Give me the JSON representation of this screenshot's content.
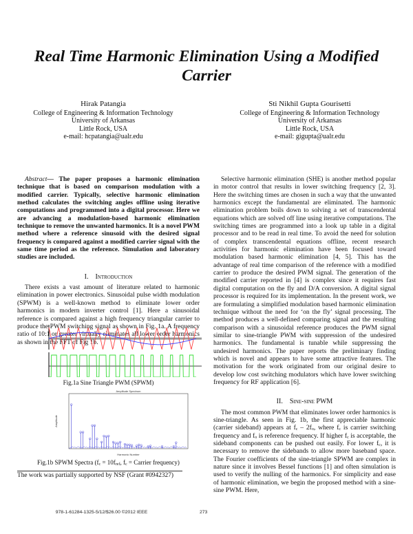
{
  "title": "Real Time Harmonic Elimination Using a Modified Carrier",
  "authors": [
    {
      "name": "Hirak Patangia",
      "dept": "College of Engineering & Information Technology",
      "univ": "University of Arkansas",
      "city": "Little Rock, USA",
      "email": "e-mail: hcpatangia@ualr.edu"
    },
    {
      "name": "Sti Nikhil Gupta Gourisetti",
      "dept": "College of Engineering & Information Technology",
      "univ": "University of Arkansas",
      "city": "Little Rock, USA",
      "email": "e-mail: gigupta@ualr.edu"
    }
  ],
  "abstract": {
    "label": "Abstract",
    "text": "— The paper proposes a harmonic elimination technique that is based on comparison modulation with a modified carrier. Typically, selective harmonic elimination method calculates the switching angles offline using iterative computations and programmed into a digital processor. Here we are advancing a modulation-based harmonic elimination technique to remove the unwanted harmonics. It is a novel PWM method where a reference sinusoid with the desired signal frequency is compared against a modified carrier signal with the same time period as the reference. Simulation and laboratory studies are included."
  },
  "section1": {
    "number": "I.",
    "title": "Introduction",
    "para1": "There exists a vast amount of literature related to harmonic elimination in power electronics. Sinusoidal pulse width modulation (SPWM) is a well-known method to eliminate lower order harmonics in modern inverter control [1]. Here a sinusoidal reference is compared against a high frequency triangular carrier to produce the PWM switching signal as shown in Fig. 1a. A frequency ratio of 10:1 or greater virtually eliminates all lower order harmonics as shown in the FFT of Fig 1b.",
    "para2": "Selective harmonic elimination (SHE) is another method popular in motor control that results in lower switching frequency [2, 3]. Here the switching times are chosen in such a way that the unwanted harmonics except the fundamental are eliminated. The harmonic elimination problem boils down to solving a set of transcendental equations which are solved off line using iterative computations. The switching times are programmed into a look up table in a digital processor and to be read in real time. To avoid the need for solution of complex transcendental equations offline, recent research activities for harmonic elimination have been focused toward modulation based harmonic elimination [4, 5]. This has the advantage of real time comparison of the reference with a modified carrier to produce the desired PWM signal. The generation of the modified carrier reported in [4] is complex since it requires fast digital computation on the fly and D/A conversion. A digital signal processor is required for its implementation. In the present work, we are formulating a simplified modulation based harmonic elimination technique without the need for ‘on the fly’ signal processing. The method produces a well-defined comparing signal and the resulting comparison with a sinusoidal reference produces the PWM signal similar to sine-triangle PWM with suppression of the undesired harmonics. The fundamental is tunable while suppressing the undesired harmonics. The paper reports the preliminary finding which is novel and appears to have some attractive features. The motivation for the work originated from our original desire to develop low cost switching modulators which have lower switching frequency for RF application [6]."
  },
  "section2": {
    "number": "II.",
    "title": "Sine-sine PWM",
    "p": [
      "The most common PWM that eliminates lower order harmonics is sine-triangle. As seen in Fig. 1b, the first appreciable harmonic (carrier sideband) appears at f",
      "c",
      " – 2f",
      "o",
      ", where f",
      "c",
      " is carrier switching frequency and f",
      "o",
      " is reference frequency. If higher f",
      "c",
      " is acceptable, the sideband components can be pushed out easily. For lower f",
      "c",
      ", it is necessary to remove the sidebands to allow more baseband space. The Fourier coefficients of the sine-triangle SPWM are complex in nature since it involves Bessel functions [1] and often simulation is used to verify the nulling of the harmonics. For simplicity and ease of harmonic elimination, we begin the proposed method with a sine-sine PWM. Here,"
    ]
  },
  "figures": {
    "fig1a_caption": "Fig.1a Sine Triangle PWM (SPWM)",
    "fig1b_caption": [
      "Fig.1b SPWM Spectra (f",
      "c",
      " = 10f",
      "ref",
      ", f",
      "c",
      " = Carrier frequency)"
    ],
    "fig1b_title": "Amplitude Spectrum",
    "fig1b_ylabel": "Amplitude",
    "fig1b_xlabel": "Harmonic Number",
    "colors": {
      "reference": "#3a3aff",
      "carrier": "#ff4040",
      "pwm": "#33dd33",
      "spectrum": "#5555dd"
    }
  },
  "chart_data": {
    "type": "bar",
    "title": "Amplitude Spectrum",
    "xlabel": "Harmonic Number",
    "ylabel": "Amplitude",
    "ylim": [
      0,
      1
    ],
    "categories": [
      1,
      9,
      11,
      17,
      19,
      21,
      23,
      27,
      29,
      31,
      33,
      37,
      39,
      41,
      43,
      47,
      49,
      51,
      53,
      57,
      59,
      61,
      67,
      69,
      79,
      89,
      91
    ],
    "values": [
      0.8,
      0.3,
      0.3,
      0.18,
      0.42,
      0.42,
      0.18,
      0.12,
      0.23,
      0.22,
      0.23,
      0.12,
      0.1,
      0.1,
      0.12,
      0.08,
      0.07,
      0.07,
      0.06,
      0.05,
      0.07,
      0.06,
      0.04,
      0.05,
      0.04,
      0.04,
      0.11
    ]
  },
  "footnote": "The work was partially supported by NSF (Grant #0942327)",
  "footer": {
    "isbn": "978-1-61284-1325-5/12/$26.00 ©2012 IEEE",
    "page": "273"
  }
}
